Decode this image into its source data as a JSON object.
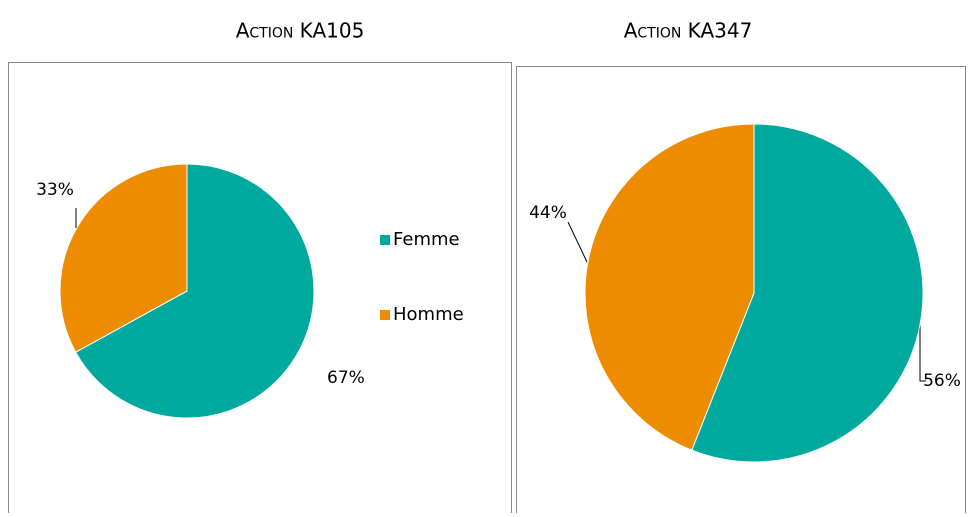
{
  "chart_data": [
    {
      "type": "pie",
      "title": "Action KA105",
      "categories": [
        "Femme",
        "Homme"
      ],
      "values": [
        67,
        33
      ],
      "value_labels": [
        "67%",
        "33%"
      ],
      "colors": [
        "#00a99d",
        "#ee8c00"
      ],
      "legend": "right"
    },
    {
      "type": "pie",
      "title": "Action KA347",
      "categories": [
        "Femme",
        "Homme"
      ],
      "values": [
        56,
        44
      ],
      "value_labels": [
        "56%",
        "44%"
      ],
      "colors": [
        "#00a99d",
        "#ee8c00"
      ]
    }
  ]
}
